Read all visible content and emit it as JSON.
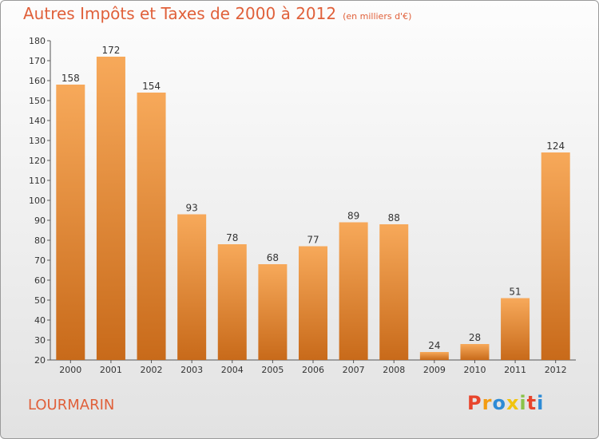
{
  "header": {
    "title": "Autres Impôts et Taxes de 2000 à 2012",
    "unit": "(en milliers d'€)"
  },
  "footer": {
    "place": "LOURMARIN",
    "brand": "Proxiti",
    "brand_colors": [
      "#e8452c",
      "#f39c12",
      "#2e8bd6",
      "#f1c40f",
      "#8bc34a",
      "#e8452c",
      "#2e8bd6"
    ]
  },
  "colors": {
    "bar_light": "#f7a95a",
    "bar_dark": "#c86a1a",
    "text": "#e0603a"
  },
  "chart_data": {
    "type": "bar",
    "title": "Autres Impôts et Taxes de 2000 à 2012",
    "xlabel": "",
    "ylabel": "",
    "categories": [
      "2000",
      "2001",
      "2002",
      "2003",
      "2004",
      "2005",
      "2006",
      "2007",
      "2008",
      "2009",
      "2010",
      "2011",
      "2012"
    ],
    "values": [
      158,
      172,
      154,
      93,
      78,
      68,
      77,
      89,
      88,
      24,
      28,
      51,
      124
    ],
    "ylim": [
      20,
      180
    ],
    "yticks": [
      20,
      30,
      40,
      50,
      60,
      70,
      80,
      90,
      100,
      110,
      120,
      130,
      140,
      150,
      160,
      170,
      180
    ],
    "grid": false,
    "legend": "none"
  }
}
